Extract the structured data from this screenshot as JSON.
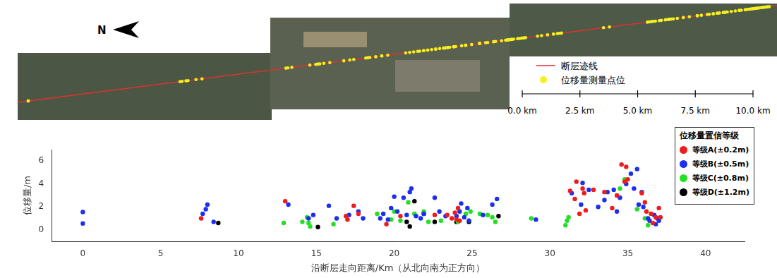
{
  "map": {
    "north_label": "N",
    "legend": [
      {
        "label": "断层迹线",
        "color": "#e03030",
        "marker": "line"
      },
      {
        "label": "位移量测量点位",
        "color": "#f5f020",
        "marker": "circle"
      }
    ],
    "scale_bar": [
      {
        "value": 0,
        "label": "0.0 km"
      },
      {
        "value": 2.5,
        "label": "2.5 km"
      },
      {
        "value": 5,
        "label": "5.0 km"
      },
      {
        "value": 7.5,
        "label": "7.5 km"
      },
      {
        "value": 10,
        "label": "10.0 km"
      }
    ]
  },
  "chart_data": {
    "type": "scatter",
    "x_label": "沿断层走向距离/Km（从北向南为正方向）",
    "y_label": "位移量/m",
    "legend_title": "位移量置信等级",
    "legend": "upper right",
    "grid": false,
    "marker": "circle",
    "xlim": [
      -2,
      42.5
    ],
    "xticks": [
      0,
      5,
      10,
      15,
      20,
      25,
      30,
      35,
      40
    ],
    "ylim": [
      -1,
      7
    ],
    "yticks": [
      0,
      2,
      4,
      6
    ],
    "series": [
      {
        "name": "等级A(±0.2m)",
        "color": "#ee1c1c",
        "x": [
          7.6,
          13.0,
          16.9,
          17.0,
          17.4,
          17.7,
          19.5,
          20.4,
          22.6,
          23.4,
          23.7,
          23.9,
          24.0,
          24.1,
          24.2,
          31.3,
          31.6,
          31.7,
          31.9,
          32.1,
          32.2,
          32.3,
          32.8,
          33.5,
          34.0,
          34.3,
          34.6,
          34.8,
          34.9,
          35.0,
          35.9,
          36.1,
          36.2,
          36.5,
          36.6,
          36.8,
          37.0,
          37.1
        ],
        "values": [
          1.0,
          2.5,
          1.2,
          0.9,
          2.1,
          1.4,
          0.5,
          1.2,
          1.3,
          1.3,
          1.0,
          1.5,
          0.9,
          1.9,
          0.8,
          3.4,
          2.7,
          4.2,
          1.4,
          3.6,
          3.2,
          1.7,
          3.5,
          3.3,
          1.9,
          3.0,
          5.7,
          4.2,
          5.5,
          4.4,
          3.2,
          2.4,
          1.6,
          1.4,
          0.6,
          1.1,
          1.9,
          1.1
        ]
      },
      {
        "name": "等级B(±0.5m)",
        "color": "#1c2ef0",
        "x": [
          0,
          0,
          7.7,
          7.9,
          8.0,
          8.4,
          13.2,
          14.5,
          14.8,
          15.8,
          16.3,
          17.1,
          17.7,
          18.0,
          19.1,
          19.3,
          19.6,
          19.8,
          20.0,
          20.2,
          20.6,
          20.8,
          21.0,
          21.1,
          21.4,
          21.7,
          21.9,
          22.6,
          22.9,
          23.3,
          24.0,
          24.2,
          24.3,
          24.5,
          24.7,
          24.8,
          25.7,
          26.3,
          26.6,
          29.1,
          31.4,
          32.0,
          32.1,
          32.5,
          33.1,
          33.5,
          33.7,
          34.1,
          34.3,
          34.5,
          34.9,
          35.2,
          35.4,
          35.6,
          35.7,
          35.9,
          36.0,
          36.3,
          36.4,
          36.7,
          36.8,
          36.9,
          37.0
        ],
        "values": [
          1.55,
          0.55,
          1.4,
          1.8,
          2.2,
          0.7,
          2.2,
          1.0,
          1.3,
          2.1,
          1.0,
          1.3,
          1.6,
          1.0,
          1.0,
          1.4,
          0.9,
          1.9,
          2.9,
          1.6,
          2.8,
          1.3,
          3.3,
          3.6,
          1.2,
          1.0,
          1.4,
          2.8,
          1.6,
          1.2,
          1.2,
          1.6,
          2.3,
          1.1,
          1.9,
          0.8,
          1.3,
          2.2,
          2.7,
          0.9,
          3.2,
          2.2,
          4.1,
          3.5,
          2.0,
          2.6,
          3.3,
          3.5,
          1.6,
          2.8,
          4.0,
          4.9,
          3.6,
          5.3,
          2.2,
          3.3,
          2.0,
          1.0,
          0.8,
          1.3,
          0.5,
          1.0,
          0.8
        ]
      },
      {
        "name": "等级C(±0.8m)",
        "color": "#22e022",
        "x": [
          12.9,
          14.1,
          14.4,
          14.5,
          14.6,
          16.1,
          18.9,
          19.8,
          20.0,
          20.4,
          20.9,
          21.3,
          21.9,
          22.2,
          23.0,
          24.1,
          24.6,
          24.9,
          25.5,
          26.0,
          26.3,
          26.5,
          28.8,
          31.0,
          31.1,
          31.2,
          34.5,
          34.8,
          35.6,
          36.1,
          36.3,
          36.5
        ],
        "values": [
          0.6,
          0.7,
          1.1,
          0.6,
          0.3,
          0.5,
          1.4,
          0.9,
          1.6,
          0.8,
          2.4,
          1.4,
          1.6,
          0.7,
          0.8,
          0.7,
          1.4,
          1.6,
          1.4,
          1.3,
          1.1,
          0.7,
          1.0,
          0.4,
          0.8,
          1.1,
          3.6,
          4.4,
          1.8,
          1.0,
          0.4,
          1.4
        ]
      },
      {
        "name": "等级D(±1.2m)",
        "color": "#000000",
        "x": [
          8.7,
          15.1,
          20.8,
          21.0,
          21.3,
          21.9,
          22.6,
          24.0,
          24.8,
          26.7
        ],
        "values": [
          0.6,
          0.25,
          0.7,
          0.3,
          2.5,
          1.4,
          0.7,
          0.7,
          0.7,
          1.2
        ]
      }
    ]
  }
}
